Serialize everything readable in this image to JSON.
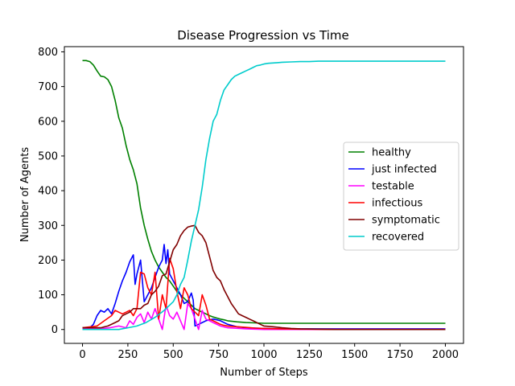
{
  "chart_data": {
    "type": "line",
    "title": "Disease Progression vs Time",
    "xlabel": "Number of Steps",
    "ylabel": "Number of Agents",
    "xlim": [
      -100,
      2100
    ],
    "ylim": [
      -40,
      815
    ],
    "xticks": [
      0,
      250,
      500,
      750,
      1000,
      1250,
      1500,
      1750,
      2000
    ],
    "yticks": [
      0,
      100,
      200,
      300,
      400,
      500,
      600,
      700,
      800
    ],
    "grid": false,
    "legend_position": "center-right",
    "series": [
      {
        "name": "healthy",
        "color": "#008000",
        "x": [
          0,
          20,
          40,
          60,
          80,
          100,
          120,
          140,
          160,
          180,
          200,
          220,
          240,
          260,
          280,
          300,
          320,
          340,
          360,
          380,
          400,
          420,
          440,
          460,
          480,
          500,
          520,
          540,
          560,
          580,
          600,
          620,
          640,
          660,
          680,
          700,
          720,
          740,
          760,
          780,
          800,
          850,
          900,
          950,
          1000,
          1100,
          1200,
          1500,
          2000
        ],
        "y": [
          775,
          775,
          772,
          762,
          745,
          730,
          728,
          720,
          700,
          660,
          610,
          580,
          530,
          490,
          460,
          420,
          350,
          300,
          260,
          225,
          200,
          180,
          165,
          150,
          140,
          125,
          110,
          100,
          90,
          80,
          70,
          60,
          55,
          50,
          45,
          40,
          36,
          33,
          30,
          28,
          25,
          22,
          20,
          19,
          18,
          18,
          18,
          18,
          18
        ]
      },
      {
        "name": "just infected",
        "color": "#0000ff",
        "x": [
          0,
          40,
          60,
          80,
          100,
          120,
          140,
          160,
          180,
          200,
          220,
          240,
          260,
          280,
          290,
          300,
          320,
          340,
          360,
          380,
          400,
          420,
          440,
          450,
          460,
          470,
          480,
          500,
          520,
          540,
          560,
          580,
          600,
          610,
          620,
          640,
          660,
          680,
          700,
          720,
          740,
          760,
          800,
          850,
          900,
          1000,
          1100,
          2000
        ],
        "y": [
          5,
          5,
          15,
          40,
          55,
          50,
          60,
          45,
          75,
          110,
          140,
          165,
          195,
          215,
          130,
          160,
          200,
          80,
          100,
          120,
          150,
          180,
          200,
          245,
          190,
          230,
          160,
          140,
          120,
          100,
          75,
          80,
          105,
          85,
          10,
          15,
          20,
          25,
          28,
          30,
          28,
          25,
          15,
          8,
          5,
          3,
          2,
          2
        ]
      },
      {
        "name": "testable",
        "color": "#ff00ff",
        "x": [
          0,
          100,
          150,
          200,
          240,
          260,
          280,
          300,
          320,
          340,
          360,
          380,
          400,
          440,
          460,
          480,
          500,
          520,
          560,
          580,
          600,
          640,
          660,
          680,
          700,
          720,
          760,
          800,
          900,
          1000,
          2000
        ],
        "y": [
          2,
          2,
          5,
          10,
          5,
          25,
          15,
          35,
          45,
          20,
          50,
          30,
          60,
          0,
          70,
          40,
          30,
          50,
          0,
          75,
          60,
          0,
          55,
          30,
          25,
          20,
          10,
          5,
          2,
          0,
          0
        ]
      },
      {
        "name": "infectious",
        "color": "#ff0000",
        "x": [
          0,
          80,
          120,
          160,
          180,
          200,
          220,
          240,
          260,
          280,
          300,
          320,
          340,
          360,
          380,
          400,
          420,
          440,
          460,
          480,
          500,
          520,
          540,
          560,
          580,
          600,
          620,
          640,
          660,
          680,
          700,
          720,
          740,
          760,
          780,
          800,
          850,
          900,
          950,
          1000,
          1100,
          1200,
          1400,
          2000
        ],
        "y": [
          5,
          10,
          25,
          40,
          55,
          50,
          45,
          50,
          55,
          40,
          60,
          165,
          160,
          120,
          100,
          165,
          30,
          100,
          60,
          205,
          175,
          110,
          60,
          120,
          100,
          60,
          50,
          40,
          100,
          70,
          30,
          25,
          20,
          15,
          12,
          10,
          8,
          6,
          4,
          3,
          2,
          1,
          0,
          0
        ]
      },
      {
        "name": "symptomatic",
        "color": "#800000",
        "x": [
          0,
          100,
          140,
          180,
          200,
          220,
          240,
          260,
          280,
          300,
          320,
          340,
          360,
          380,
          400,
          420,
          440,
          460,
          480,
          500,
          520,
          540,
          560,
          580,
          600,
          620,
          640,
          660,
          680,
          700,
          720,
          740,
          760,
          780,
          800,
          820,
          840,
          860,
          880,
          900,
          920,
          940,
          960,
          980,
          1000,
          1050,
          1100,
          1150,
          1200,
          1300,
          1400,
          2000
        ],
        "y": [
          5,
          5,
          10,
          20,
          25,
          40,
          45,
          50,
          60,
          60,
          60,
          70,
          75,
          100,
          110,
          125,
          155,
          160,
          195,
          230,
          245,
          270,
          285,
          295,
          298,
          300,
          280,
          270,
          250,
          210,
          170,
          150,
          140,
          115,
          95,
          75,
          60,
          45,
          40,
          35,
          30,
          25,
          20,
          15,
          10,
          8,
          5,
          3,
          2,
          1,
          0,
          0
        ]
      },
      {
        "name": "recovered",
        "color": "#00cccc",
        "x": [
          0,
          200,
          250,
          300,
          350,
          400,
          450,
          500,
          520,
          540,
          560,
          580,
          600,
          620,
          640,
          660,
          680,
          700,
          720,
          740,
          760,
          780,
          800,
          820,
          840,
          860,
          880,
          900,
          920,
          940,
          960,
          980,
          1000,
          1025,
          1050,
          1075,
          1100,
          1150,
          1200,
          1250,
          1300,
          1400,
          1500,
          2000
        ],
        "y": [
          0,
          0,
          5,
          10,
          20,
          35,
          55,
          80,
          100,
          130,
          150,
          200,
          255,
          300,
          345,
          410,
          490,
          550,
          600,
          620,
          660,
          690,
          705,
          720,
          730,
          735,
          740,
          745,
          750,
          755,
          760,
          762,
          765,
          767,
          768,
          769,
          770,
          771,
          772,
          772,
          773,
          773,
          773,
          773
        ]
      }
    ]
  }
}
